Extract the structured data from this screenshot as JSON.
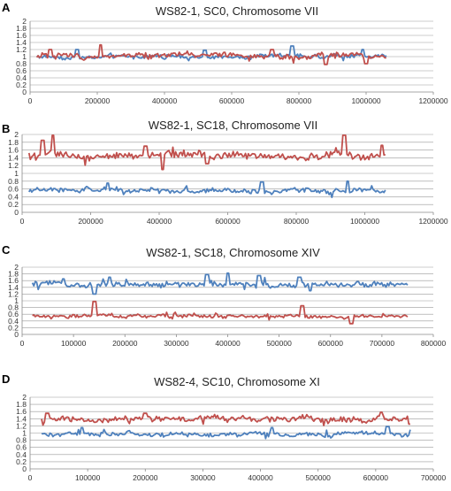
{
  "chart_data": [
    {
      "type": "line",
      "panel_label": "A",
      "title": "WS82-1, SC0, Chromosome VII",
      "ylim": [
        0,
        2
      ],
      "yticks": [
        "0",
        "0.2",
        "0.4",
        "0.6",
        "0.8",
        "1",
        "1.2",
        "1.4",
        "1.6",
        "1.8",
        "2"
      ],
      "xlim": [
        0,
        1200000
      ],
      "xticks": [
        "0",
        "200000",
        "400000",
        "600000",
        "800000",
        "1000000",
        "1200000"
      ],
      "grid": true,
      "x_start": 20000,
      "x_end": 1060000,
      "series": [
        {
          "color": "#4f81bd",
          "mean": 1.0,
          "noise": 0.055,
          "spikes": [
            [
              140000,
              1.2
            ],
            [
              520000,
              1.18
            ],
            [
              780000,
              1.3
            ],
            [
              990000,
              1.2
            ]
          ]
        },
        {
          "color": "#c0504d",
          "mean": 1.02,
          "noise": 0.07,
          "spikes": [
            [
              60000,
              1.2
            ],
            [
              210000,
              1.33
            ],
            [
              720000,
              1.2
            ],
            [
              880000,
              0.78
            ],
            [
              1000000,
              0.8
            ]
          ]
        }
      ]
    },
    {
      "type": "line",
      "panel_label": "B",
      "title": "WS82-1, SC18, Chromosome VII",
      "ylim": [
        0,
        2
      ],
      "yticks": [
        "0",
        "0.2",
        "0.4",
        "0.6",
        "0.8",
        "1",
        "1.2",
        "1.4",
        "1.6",
        "1.8",
        "2"
      ],
      "xlim": [
        0,
        1200000
      ],
      "xticks": [
        "0",
        "200000",
        "400000",
        "600000",
        "800000",
        "1000000",
        "1200000"
      ],
      "grid": true,
      "x_start": 20000,
      "x_end": 1060000,
      "series": [
        {
          "color": "#4f81bd",
          "mean": 0.56,
          "noise": 0.06,
          "spikes": [
            [
              250000,
              0.75
            ],
            [
              700000,
              0.78
            ],
            [
              950000,
              0.8
            ]
          ]
        },
        {
          "color": "#c0504d",
          "mean": 1.46,
          "noise": 0.09,
          "spikes": [
            [
              90000,
              1.98
            ],
            [
              60000,
              1.85
            ],
            [
              360000,
              1.7
            ],
            [
              410000,
              1.1
            ],
            [
              540000,
              1.25
            ],
            [
              940000,
              1.98
            ],
            [
              1050000,
              1.72
            ]
          ]
        }
      ]
    },
    {
      "type": "line",
      "panel_label": "C",
      "title": "WS82-1, SC18, Chromosome XIV",
      "ylim": [
        0,
        2
      ],
      "yticks": [
        "0",
        "0.2",
        "0.4",
        "0.6",
        "0.8",
        "1",
        "1.2",
        "1.4",
        "1.6",
        "1.8",
        "2"
      ],
      "xlim": [
        0,
        800000
      ],
      "xticks": [
        "0",
        "100000",
        "200000",
        "300000",
        "400000",
        "500000",
        "600000",
        "700000",
        "800000"
      ],
      "grid": true,
      "x_start": 20000,
      "x_end": 750000,
      "series": [
        {
          "color": "#4f81bd",
          "mean": 1.48,
          "noise": 0.08,
          "spikes": [
            [
              80000,
              1.65
            ],
            [
              170000,
              1.7
            ],
            [
              360000,
              1.78
            ],
            [
              400000,
              1.82
            ],
            [
              460000,
              1.75
            ],
            [
              540000,
              1.7
            ],
            [
              140000,
              1.2
            ],
            [
              560000,
              1.3
            ]
          ]
        },
        {
          "color": "#c0504d",
          "mean": 0.54,
          "noise": 0.05,
          "spikes": [
            [
              140000,
              0.98
            ],
            [
              545000,
              0.85
            ],
            [
              640000,
              0.32
            ]
          ]
        }
      ]
    },
    {
      "type": "line",
      "panel_label": "D",
      "title": "WS82-4, SC10, Chromosome XI",
      "ylim": [
        0,
        2
      ],
      "yticks": [
        "0",
        "0.2",
        "0.4",
        "0.6",
        "0.8",
        "1",
        "1.2",
        "1.4",
        "1.6",
        "1.8",
        "2"
      ],
      "xlim": [
        0,
        700000
      ],
      "xticks": [
        "0",
        "100000",
        "200000",
        "300000",
        "400000",
        "500000",
        "600000",
        "700000"
      ],
      "grid": true,
      "x_start": 20000,
      "x_end": 660000,
      "series": [
        {
          "color": "#4f81bd",
          "mean": 0.96,
          "noise": 0.06,
          "spikes": [
            [
              90000,
              1.15
            ],
            [
              420000,
              1.15
            ],
            [
              620000,
              1.18
            ]
          ]
        },
        {
          "color": "#c0504d",
          "mean": 1.38,
          "noise": 0.08,
          "spikes": [
            [
              30000,
              1.55
            ],
            [
              200000,
              1.55
            ],
            [
              610000,
              1.58
            ],
            [
              660000,
              1.25
            ]
          ]
        }
      ]
    }
  ]
}
